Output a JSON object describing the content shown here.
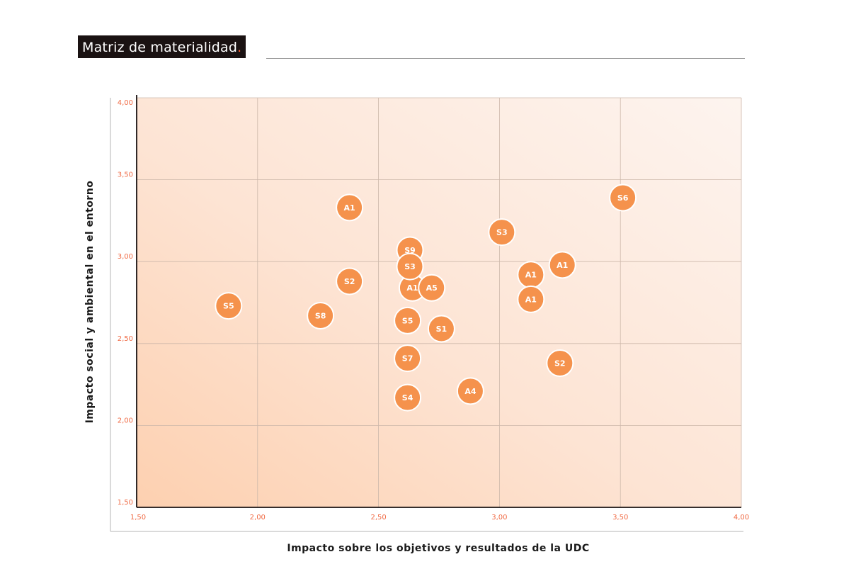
{
  "title": "Matriz de materialidad",
  "title_dot": ".",
  "colors": {
    "accent": "#ff5a2a",
    "bubble": "#f5924c",
    "bubble_stroke": "#ffffff",
    "tick": "#f06a44",
    "grid": "#cdb8aa",
    "axis": "#1a1212"
  },
  "chart_data": {
    "type": "scatter",
    "title": "",
    "xlabel": "Impacto sobre los objetivos y resultados de la UDC",
    "ylabel": "Impacto social y ambiental en el entorno",
    "xlim": [
      1.5,
      4.0
    ],
    "ylim": [
      1.5,
      4.0
    ],
    "x_ticks": [
      1.5,
      2.0,
      2.5,
      3.0,
      3.5,
      4.0
    ],
    "y_ticks": [
      1.5,
      2.0,
      2.5,
      3.0,
      3.5,
      4.0
    ],
    "x_tick_labels": [
      "1,50",
      "2,00",
      "2,50",
      "3,00",
      "3,50",
      "4,00"
    ],
    "y_tick_labels": [
      "1,50",
      "2,00",
      "2,50",
      "3,00",
      "3,50",
      "4,00"
    ],
    "grid": true,
    "background": "orange gradient, darkest at bottom-left",
    "points": [
      {
        "label": "S5",
        "x": 1.88,
        "y": 2.73
      },
      {
        "label": "S8",
        "x": 2.26,
        "y": 2.67
      },
      {
        "label": "A1",
        "x": 2.38,
        "y": 3.33
      },
      {
        "label": "S2",
        "x": 2.38,
        "y": 2.88
      },
      {
        "label": "S9",
        "x": 2.63,
        "y": 3.07
      },
      {
        "label": "A1",
        "x": 2.64,
        "y": 2.84
      },
      {
        "label": "S3",
        "x": 2.63,
        "y": 2.97
      },
      {
        "label": "A5",
        "x": 2.72,
        "y": 2.84
      },
      {
        "label": "S5",
        "x": 2.62,
        "y": 2.64
      },
      {
        "label": "S1",
        "x": 2.76,
        "y": 2.59
      },
      {
        "label": "S7",
        "x": 2.62,
        "y": 2.41
      },
      {
        "label": "S4",
        "x": 2.62,
        "y": 2.17
      },
      {
        "label": "A4",
        "x": 2.88,
        "y": 2.21
      },
      {
        "label": "S3",
        "x": 3.01,
        "y": 3.18
      },
      {
        "label": "A1",
        "x": 3.13,
        "y": 2.92
      },
      {
        "label": "A1",
        "x": 3.13,
        "y": 2.77
      },
      {
        "label": "A1",
        "x": 3.26,
        "y": 2.98
      },
      {
        "label": "S2",
        "x": 3.25,
        "y": 2.38
      },
      {
        "label": "S6",
        "x": 3.51,
        "y": 3.39
      }
    ]
  }
}
